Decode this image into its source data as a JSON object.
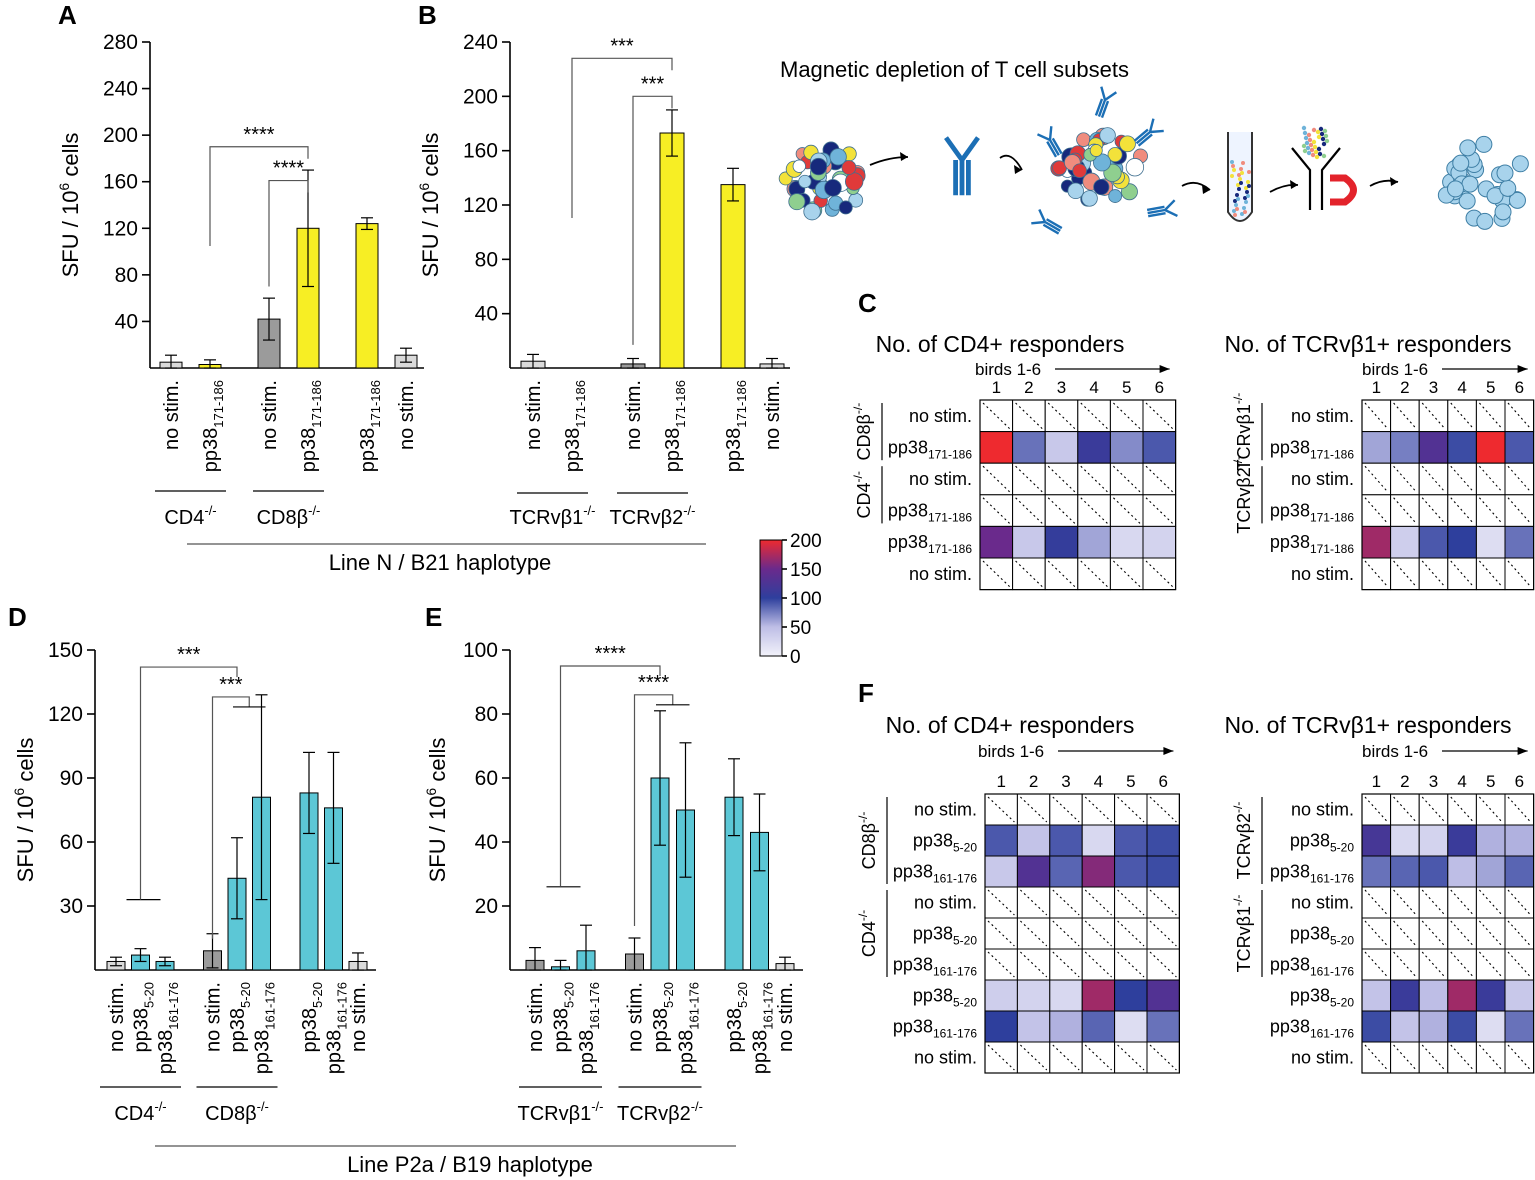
{
  "colors": {
    "gray": "#9b9b9b",
    "yellow": "#f7ee24",
    "cyan": "#5cc7d6",
    "ns_light": "#dadada",
    "hm_low": "#eeeef8",
    "hm_mid": "#2e3f9d",
    "hm_mid2": "#6a2a8c",
    "hm_high": "#ee2a2f"
  },
  "schematic": {
    "title": "Magnetic depletion of T cell subsets"
  },
  "chart_data": [
    {
      "panel": "A",
      "type": "bar",
      "ylabel": "SFU / 10⁶ cells",
      "ylabel_main": "SFU / 10",
      "ylabel_sup": "6",
      "ylabel_tail": " cells",
      "ylim": [
        0,
        280
      ],
      "yticks": [
        40,
        80,
        120,
        160,
        200,
        240,
        280
      ],
      "bars": [
        {
          "label": "no stim.",
          "sub": "",
          "value": 5,
          "err": 6,
          "color": "ns_light"
        },
        {
          "label": "pp38",
          "sub": "171-186",
          "value": 3,
          "err": 4,
          "color": "yellow"
        },
        {
          "label": "no stim.",
          "sub": "",
          "value": 42,
          "err": 18,
          "color": "gray",
          "gap": 1
        },
        {
          "label": "pp38",
          "sub": "171-186",
          "value": 120,
          "err": 50,
          "color": "yellow"
        },
        {
          "label": "pp38",
          "sub": "171-186",
          "value": 124,
          "err": 5,
          "color": "yellow",
          "gap": 1
        },
        {
          "label": "no stim.",
          "sub": "",
          "value": 11,
          "err": 6,
          "color": "ns_light"
        }
      ],
      "groups": [
        {
          "label": "CD4",
          "sup": "-/-",
          "from": 0,
          "to": 1
        },
        {
          "label": "CD8β",
          "sup": "-/-",
          "from": 2,
          "to": 3
        }
      ],
      "sig": [
        {
          "text": "****",
          "from": 1,
          "to": 3,
          "y": 190
        },
        {
          "text": "****",
          "from": 2,
          "to": 3,
          "y": 161
        }
      ]
    },
    {
      "panel": "B",
      "type": "bar",
      "ylabel": "SFU / 10⁶ cells",
      "ylabel_main": "SFU / 10",
      "ylabel_sup": "6",
      "ylabel_tail": " cells",
      "ylim": [
        0,
        240
      ],
      "yticks": [
        40,
        80,
        120,
        160,
        200,
        240
      ],
      "bars": [
        {
          "label": "no stim.",
          "sub": "",
          "value": 5,
          "err": 5,
          "color": "ns_light"
        },
        {
          "label": "pp38",
          "sub": "171-186",
          "value": 0,
          "err": 0,
          "color": "yellow"
        },
        {
          "label": "no stim.",
          "sub": "",
          "value": 3,
          "err": 4,
          "color": "gray",
          "gap": 1
        },
        {
          "label": "pp38",
          "sub": "171-186",
          "value": 173,
          "err": 17,
          "color": "yellow"
        },
        {
          "label": "pp38",
          "sub": "171-186",
          "value": 135,
          "err": 12,
          "color": "yellow",
          "gap": 1
        },
        {
          "label": "no stim.",
          "sub": "",
          "value": 3,
          "err": 4,
          "color": "ns_light"
        }
      ],
      "groups": [
        {
          "label": "TCRvβ1",
          "sup": "-/-",
          "from": 0,
          "to": 1
        },
        {
          "label": "TCRvβ2",
          "sup": "-/-",
          "from": 2,
          "to": 3
        }
      ],
      "sig": [
        {
          "text": "***",
          "from": 1,
          "to": 3,
          "y": 228
        },
        {
          "text": "***",
          "from": 2,
          "to": 3,
          "y": 200
        }
      ]
    },
    {
      "panel": "D",
      "type": "bar",
      "ylabel": "SFU / 10⁶ cells",
      "ylabel_main": "SFU / 10",
      "ylabel_sup": "6",
      "ylabel_tail": " cells",
      "ylim": [
        0,
        150
      ],
      "yticks": [
        30,
        60,
        90,
        120,
        150
      ],
      "bars": [
        {
          "label": "no stim.",
          "sub": "",
          "value": 4,
          "err": 2,
          "color": "ns_light"
        },
        {
          "label": "pp38",
          "sub": "5-20",
          "value": 7,
          "err": 3,
          "color": "cyan"
        },
        {
          "label": "pp38",
          "sub": "161-176",
          "value": 4,
          "err": 2,
          "color": "cyan"
        },
        {
          "label": "no stim.",
          "sub": "",
          "value": 9,
          "err": 8,
          "color": "gray",
          "gap": 1
        },
        {
          "label": "pp38",
          "sub": "5-20",
          "value": 43,
          "err": 19,
          "color": "cyan"
        },
        {
          "label": "pp38",
          "sub": "161-176",
          "value": 81,
          "err": 48,
          "color": "cyan"
        },
        {
          "label": "pp38",
          "sub": "5-20",
          "value": 83,
          "err": 19,
          "color": "cyan",
          "gap": 1
        },
        {
          "label": "pp38",
          "sub": "161-176",
          "value": 76,
          "err": 26,
          "color": "cyan"
        },
        {
          "label": "no stim.",
          "sub": "",
          "value": 4,
          "err": 4,
          "color": "ns_light"
        }
      ],
      "groups": [
        {
          "label": "CD4",
          "sup": "-/-",
          "from": 0,
          "to": 2
        },
        {
          "label": "CD8β",
          "sup": "-/-",
          "from": 3,
          "to": 5
        }
      ],
      "sig": [
        {
          "text": "***",
          "type": "outer",
          "left": 1,
          "right": 4,
          "baseY": 33,
          "topY": 142
        },
        {
          "text": "***",
          "type": "inner",
          "left": 3,
          "rightA": 4,
          "rightB": 5,
          "baseY": 9,
          "topY": 128,
          "bracketY": 135
        }
      ]
    },
    {
      "panel": "E",
      "type": "bar",
      "ylabel": "SFU / 10⁶ cells",
      "ylabel_main": "SFU / 10",
      "ylabel_sup": "6",
      "ylabel_tail": " cells",
      "ylim": [
        0,
        100
      ],
      "yticks": [
        20,
        40,
        60,
        80,
        100
      ],
      "bars": [
        {
          "label": "no stim.",
          "sub": "",
          "value": 3,
          "err": 4,
          "color": "gray"
        },
        {
          "label": "pp38",
          "sub": "5-20",
          "value": 1,
          "err": 2,
          "color": "cyan"
        },
        {
          "label": "pp38",
          "sub": "161-176",
          "value": 6,
          "err": 8,
          "color": "cyan"
        },
        {
          "label": "no stim.",
          "sub": "",
          "value": 5,
          "err": 5,
          "color": "gray",
          "gap": 1
        },
        {
          "label": "pp38",
          "sub": "5-20",
          "value": 60,
          "err": 21,
          "color": "cyan"
        },
        {
          "label": "pp38",
          "sub": "161-176",
          "value": 50,
          "err": 21,
          "color": "cyan"
        },
        {
          "label": "pp38",
          "sub": "5-20",
          "value": 54,
          "err": 12,
          "color": "cyan",
          "gap": 1
        },
        {
          "label": "pp38",
          "sub": "161-176",
          "value": 43,
          "err": 12,
          "color": "cyan"
        },
        {
          "label": "no stim.",
          "sub": "",
          "value": 2,
          "err": 2,
          "color": "ns_light"
        }
      ],
      "groups": [
        {
          "label": "TCRvβ1",
          "sup": "-/-",
          "from": 0,
          "to": 2
        },
        {
          "label": "TCRvβ2",
          "sup": "-/-",
          "from": 3,
          "to": 5
        }
      ],
      "sig": [
        {
          "text": "****",
          "type": "outer",
          "left": 1,
          "right": 4,
          "baseY": 26,
          "topY": 95
        },
        {
          "text": "****",
          "type": "inner",
          "left": 3,
          "rightA": 4,
          "rightB": 5,
          "baseY": 10,
          "topY": 86,
          "bracketY": 84
        }
      ]
    },
    {
      "panel": "C",
      "type": "heatmap",
      "title": "No. of CD4+ responders",
      "birds_label": "birds 1-6",
      "cols": [
        "1",
        "2",
        "3",
        "4",
        "5",
        "6"
      ],
      "rows": [
        {
          "label": "no stim.",
          "sub": "",
          "values": null
        },
        {
          "label": "pp38",
          "sub": "171-186",
          "values": [
            200,
            80,
            40,
            110,
            70,
            90
          ]
        },
        {
          "label": "no stim.",
          "sub": "",
          "values": null
        },
        {
          "label": "pp38",
          "sub": "171-186",
          "values": null
        },
        {
          "label": "pp38",
          "sub": "171-186",
          "values": [
            150,
            40,
            105,
            60,
            25,
            30
          ]
        },
        {
          "label": "no stim.",
          "sub": "",
          "values": null
        }
      ],
      "side": [
        {
          "label": "CD8β",
          "sup": "-/-",
          "rows": [
            0,
            1
          ]
        },
        {
          "label": "CD4",
          "sup": "-/-",
          "rows": [
            2,
            3
          ]
        }
      ]
    },
    {
      "panel": "C2",
      "type": "heatmap",
      "title": "No. of TCRvβ1+ responders",
      "birds_label": "birds 1-6",
      "cols": [
        "1",
        "2",
        "3",
        "4",
        "5",
        "6"
      ],
      "rows": [
        {
          "label": "no stim.",
          "sub": "",
          "values": null
        },
        {
          "label": "pp38",
          "sub": "171-186",
          "values": [
            60,
            75,
            130,
            95,
            200,
            90
          ]
        },
        {
          "label": "no stim.",
          "sub": "",
          "values": null
        },
        {
          "label": "pp38",
          "sub": "171-186",
          "values": null
        },
        {
          "label": "pp38",
          "sub": "171-186",
          "values": [
            170,
            35,
            90,
            100,
            20,
            80
          ]
        },
        {
          "label": "no stim.",
          "sub": "",
          "values": null
        }
      ],
      "side": [
        {
          "label": "TCRvβ1",
          "sup": "-/-",
          "rows": [
            0,
            1
          ]
        },
        {
          "label": "TCRvβ2",
          "sup": "-/-",
          "rows": [
            2,
            3
          ]
        }
      ]
    },
    {
      "panel": "F",
      "type": "heatmap",
      "title": "No. of CD4+ responders",
      "birds_label": "birds 1-6",
      "cols": [
        "1",
        "2",
        "3",
        "4",
        "5",
        "6"
      ],
      "rows": [
        {
          "label": "no stim.",
          "sub": "",
          "values": null
        },
        {
          "label": "pp38",
          "sub": "5-20",
          "values": [
            90,
            45,
            90,
            25,
            90,
            95
          ]
        },
        {
          "label": "pp38",
          "sub": "161-176",
          "values": [
            40,
            130,
            85,
            160,
            90,
            95
          ]
        },
        {
          "label": "no stim.",
          "sub": "",
          "values": null
        },
        {
          "label": "pp38",
          "sub": "5-20",
          "values": null
        },
        {
          "label": "pp38",
          "sub": "161-176",
          "values": null
        },
        {
          "label": "pp38",
          "sub": "5-20",
          "values": [
            35,
            30,
            25,
            170,
            100,
            130
          ]
        },
        {
          "label": "pp38",
          "sub": "161-176",
          "values": [
            100,
            45,
            55,
            85,
            20,
            80
          ]
        },
        {
          "label": "no stim.",
          "sub": "",
          "values": null
        }
      ],
      "side": [
        {
          "label": "CD8β",
          "sup": "-/-",
          "rows": [
            0,
            2
          ]
        },
        {
          "label": "CD4",
          "sup": "-/-",
          "rows": [
            3,
            5
          ]
        }
      ]
    },
    {
      "panel": "F2",
      "type": "heatmap",
      "title": "No. of TCRvβ1+ responders",
      "birds_label": "birds 1-6",
      "cols": [
        "1",
        "2",
        "3",
        "4",
        "5",
        "6"
      ],
      "rows": [
        {
          "label": "no stim.",
          "sub": "",
          "values": null
        },
        {
          "label": "pp38",
          "sub": "5-20",
          "values": [
            120,
            25,
            30,
            110,
            55,
            55
          ]
        },
        {
          "label": "pp38",
          "sub": "161-176",
          "values": [
            80,
            85,
            90,
            50,
            60,
            85
          ]
        },
        {
          "label": "no stim.",
          "sub": "",
          "values": null
        },
        {
          "label": "pp38",
          "sub": "5-20",
          "values": null
        },
        {
          "label": "pp38",
          "sub": "161-176",
          "values": null
        },
        {
          "label": "pp38",
          "sub": "5-20",
          "values": [
            45,
            110,
            50,
            170,
            110,
            40
          ]
        },
        {
          "label": "pp38",
          "sub": "161-176",
          "values": [
            95,
            45,
            55,
            95,
            20,
            80
          ]
        },
        {
          "label": "no stim.",
          "sub": "",
          "values": null
        }
      ],
      "side": [
        {
          "label": "TCRvβ2",
          "sup": "-/-",
          "rows": [
            0,
            2
          ]
        },
        {
          "label": "TCRvβ1",
          "sup": "-/-",
          "rows": [
            3,
            5
          ]
        }
      ]
    },
    {
      "panel": "legend",
      "type": "colorbar",
      "min": 0,
      "max": 200,
      "ticks": [
        0,
        50,
        100,
        150,
        200
      ]
    }
  ],
  "panel_letters": {
    "A": "A",
    "B": "B",
    "C": "C",
    "D": "D",
    "E": "E",
    "F": "F"
  },
  "haplotype_labels": {
    "top": "Line N / B21 haplotype",
    "bottom": "Line P2a / B19 haplotype"
  }
}
